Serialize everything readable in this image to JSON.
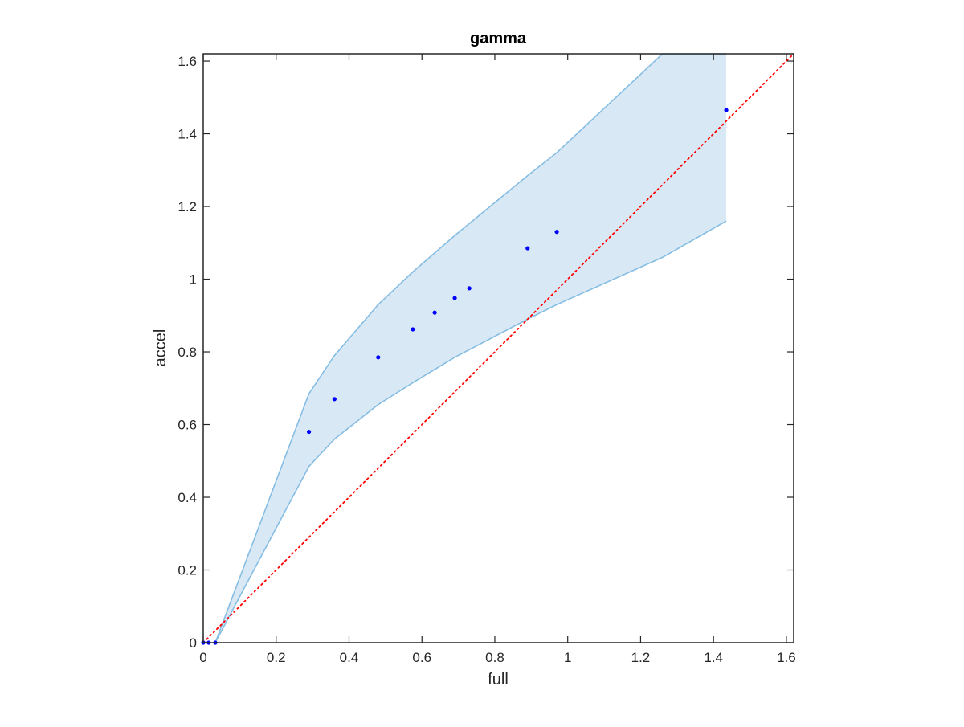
{
  "chart_data": {
    "type": "scatter",
    "title": "gamma",
    "xlabel": "full",
    "ylabel": "accel",
    "xlim": [
      0,
      1.62
    ],
    "ylim": [
      0,
      1.62
    ],
    "xticks": [
      0,
      0.2,
      0.4,
      0.6,
      0.8,
      1,
      1.2,
      1.4,
      1.6
    ],
    "yticks": [
      0,
      0.2,
      0.4,
      0.6,
      0.8,
      1,
      1.2,
      1.4,
      1.6
    ],
    "xtick_labels": [
      "0",
      "0.2",
      "0.4",
      "0.6",
      "0.8",
      "1",
      "1.2",
      "1.4",
      "1.6"
    ],
    "ytick_labels": [
      "0",
      "0.2",
      "0.4",
      "0.6",
      "0.8",
      "1",
      "1.2",
      "1.4",
      "1.6"
    ],
    "grid": false,
    "points": {
      "color": "#0000ff",
      "x": [
        0.0,
        0.015,
        0.033,
        0.29,
        0.36,
        0.48,
        0.575,
        0.635,
        0.69,
        0.73,
        0.89,
        0.97,
        1.435
      ],
      "y": [
        0.0,
        0.0,
        0.0,
        0.58,
        0.67,
        0.785,
        0.862,
        0.908,
        0.948,
        0.975,
        1.085,
        1.13,
        1.465
      ]
    },
    "band": {
      "fill_color": "#d8e8f5",
      "edge_color": "#86bde3",
      "x": [
        0.033,
        0.29,
        0.36,
        0.48,
        0.575,
        0.69,
        0.89,
        0.97,
        1.26,
        1.435
      ],
      "upper": [
        0.0,
        0.685,
        0.79,
        0.93,
        1.02,
        1.12,
        1.285,
        1.348,
        1.62,
        1.62
      ],
      "lower": [
        0.0,
        0.485,
        0.56,
        0.655,
        0.715,
        0.785,
        0.89,
        0.93,
        1.06,
        1.16
      ]
    },
    "reference_line": {
      "style": "dotted",
      "color": "#ff0000",
      "x": [
        0,
        1.62
      ],
      "y": [
        0,
        1.62
      ]
    }
  }
}
